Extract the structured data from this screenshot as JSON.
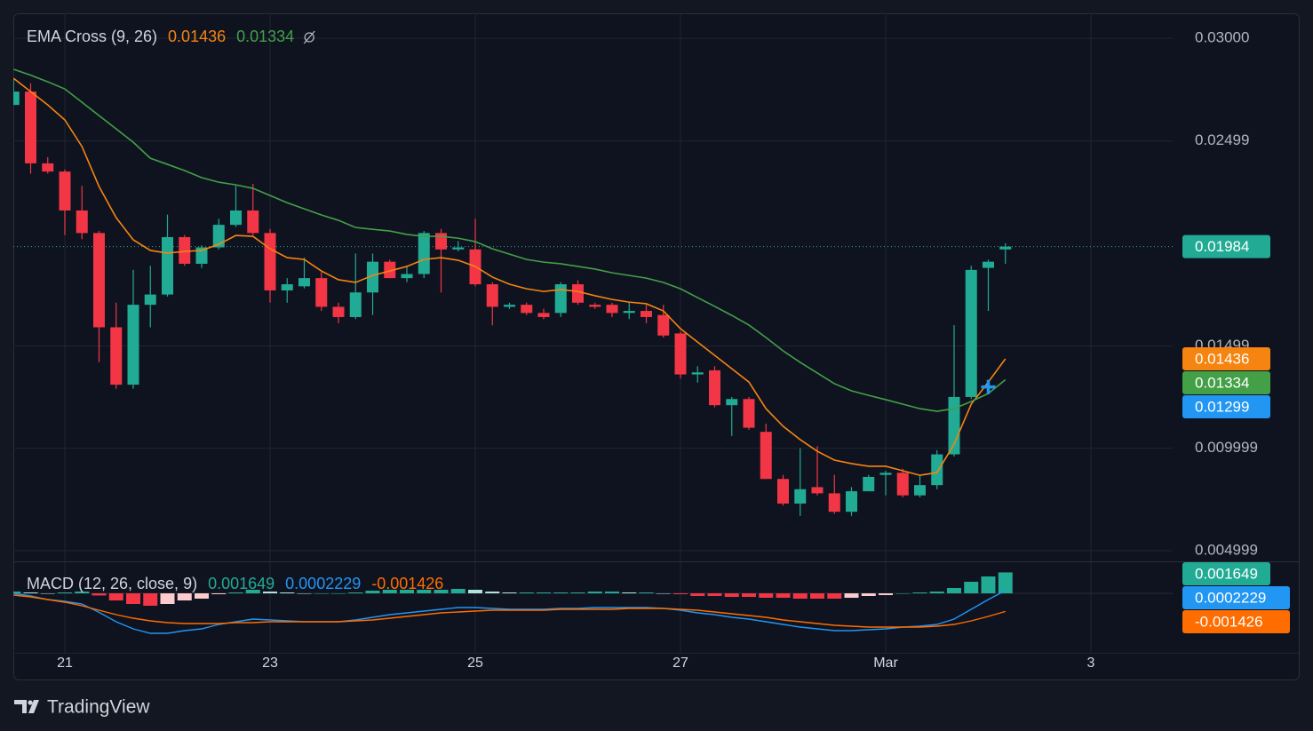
{
  "chart_data": [
    {
      "type": "candlestick",
      "legend_title": "EMA Cross (9, 26)",
      "categories": [
        null,
        null,
        null,
        "21",
        null,
        null,
        null,
        null,
        null,
        null,
        null,
        null,
        null,
        null,
        null,
        "23",
        null,
        null,
        null,
        null,
        null,
        null,
        null,
        null,
        null,
        null,
        null,
        "25",
        null,
        null,
        null,
        null,
        null,
        null,
        null,
        null,
        null,
        null,
        null,
        "27",
        null,
        null,
        null,
        null,
        null,
        null,
        null,
        null,
        null,
        null,
        null,
        "Mar",
        null,
        null,
        null,
        null,
        null,
        null,
        null,
        null,
        null,
        null,
        null,
        "3"
      ],
      "open": [
        0.02675,
        0.0274,
        0.0239,
        0.0235,
        0.0216,
        0.0205,
        0.0159,
        0.0131,
        0.017,
        0.0175,
        0.0203,
        0.019,
        0.0198,
        0.0209,
        0.0216,
        0.0205,
        0.0177,
        0.0179,
        0.0183,
        0.0169,
        0.0164,
        0.0176,
        0.0191,
        0.0183,
        0.0185,
        0.0205,
        0.0197,
        0.0197,
        0.018,
        0.0169,
        0.017,
        0.0166,
        0.0166,
        0.018,
        0.017,
        0.017,
        0.0166,
        0.0167,
        0.0165,
        0.0156,
        0.0136,
        0.0138,
        0.0121,
        0.0124,
        0.0108,
        0.0085,
        0.0073,
        0.0081,
        0.0078,
        0.0069,
        0.0079,
        0.0087,
        0.0088,
        0.0077,
        0.0082,
        0.0097,
        0.0125,
        0.0188,
        0.0197,
        null,
        null,
        null,
        null,
        null
      ],
      "high": [
        0.028,
        0.0278,
        0.0242,
        0.0236,
        0.0228,
        0.0206,
        0.0171,
        0.0187,
        0.0189,
        0.0214,
        0.0204,
        0.0199,
        0.0212,
        0.0228,
        0.0229,
        0.0207,
        0.0183,
        0.0193,
        0.0186,
        0.0171,
        0.0195,
        0.0195,
        0.0192,
        0.0189,
        0.0206,
        0.0207,
        0.0201,
        0.0212,
        0.0181,
        0.0171,
        0.0171,
        0.0168,
        0.0181,
        0.0182,
        0.0171,
        0.0171,
        0.0171,
        0.017,
        0.017,
        0.0157,
        0.014,
        0.014,
        0.0125,
        0.0125,
        0.0112,
        0.0087,
        0.01,
        0.0101,
        0.0087,
        0.0081,
        0.0087,
        0.0089,
        0.009,
        0.0087,
        0.0099,
        0.016,
        0.0189,
        0.0192,
        0.02,
        null,
        null,
        null,
        null,
        null
      ],
      "low": [
        0.02675,
        0.0234,
        0.0234,
        0.0204,
        0.0202,
        0.0142,
        0.0129,
        0.0129,
        0.0159,
        0.0174,
        0.0189,
        0.0188,
        0.0197,
        0.0208,
        0.0204,
        0.0171,
        0.0171,
        0.0178,
        0.0167,
        0.0161,
        0.0163,
        0.0165,
        0.0183,
        0.0181,
        0.0183,
        0.0176,
        0.0196,
        0.0179,
        0.016,
        0.0168,
        0.0165,
        0.0163,
        0.0164,
        0.017,
        0.0168,
        0.0164,
        0.0163,
        0.0161,
        0.0154,
        0.0134,
        0.0132,
        0.012,
        0.0106,
        0.0109,
        0.0085,
        0.0072,
        0.0067,
        0.0077,
        0.0068,
        0.0067,
        0.0079,
        0.0077,
        0.0076,
        0.0076,
        0.008,
        0.0096,
        0.0124,
        0.0167,
        0.019,
        null,
        null,
        null,
        null,
        null
      ],
      "close": [
        0.0274,
        0.0239,
        0.0235,
        0.0216,
        0.0205,
        0.0159,
        0.0131,
        0.017,
        0.0175,
        0.0203,
        0.019,
        0.0198,
        0.0209,
        0.0216,
        0.0205,
        0.0177,
        0.018,
        0.0183,
        0.0169,
        0.0164,
        0.0176,
        0.0191,
        0.0183,
        0.0185,
        0.0205,
        0.0197,
        0.0198,
        0.018,
        0.0169,
        0.017,
        0.0166,
        0.0164,
        0.018,
        0.0171,
        0.0169,
        0.0166,
        0.0167,
        0.0164,
        0.0155,
        0.0136,
        0.0137,
        0.0121,
        0.0124,
        0.011,
        0.0085,
        0.0073,
        0.008,
        0.0078,
        0.0069,
        0.0079,
        0.0086,
        0.0088,
        0.0077,
        0.0082,
        0.0097,
        0.0125,
        0.0187,
        0.0191,
        0.01984,
        null,
        null,
        null,
        null,
        null
      ],
      "up_color": "#22ab94",
      "down_color": "#f23645",
      "series": [
        {
          "color": "#f68410",
          "values": [
            0.02805,
            0.0274,
            0.02675,
            0.02602,
            0.02472,
            0.02277,
            0.02125,
            0.02017,
            0.01965,
            0.01952,
            0.0196,
            0.01965,
            0.01995,
            0.02038,
            0.02034,
            0.01973,
            0.0193,
            0.01921,
            0.01865,
            0.01822,
            0.01809,
            0.01843,
            0.01865,
            0.01887,
            0.01921,
            0.0193,
            0.01917,
            0.01887,
            0.01835,
            0.018,
            0.01778,
            0.01765,
            0.01774,
            0.01765,
            0.01744,
            0.01726,
            0.01713,
            0.01705,
            0.0167,
            0.01583,
            0.01518,
            0.01453,
            0.01388,
            0.01323,
            0.01193,
            0.01107,
            0.01042,
            0.00985,
            0.00942,
            0.00925,
            0.00912,
            0.00912,
            0.0089,
            0.00868,
            0.00881,
            0.0102,
            0.01215,
            0.01323,
            0.01436,
            null,
            null,
            null,
            null,
            null
          ]
        },
        {
          "color": "#43a047",
          "values": [
            0.02849,
            0.0282,
            0.02788,
            0.02753,
            0.02688,
            0.02623,
            0.02558,
            0.02493,
            0.02415,
            0.02385,
            0.02355,
            0.0232,
            0.02298,
            0.02285,
            0.02268,
            0.02233,
            0.02198,
            0.02168,
            0.02138,
            0.02112,
            0.02077,
            0.02068,
            0.0206,
            0.02043,
            0.02034,
            0.02034,
            0.02025,
            0.02008,
            0.01973,
            0.01947,
            0.01921,
            0.01908,
            0.019,
            0.01887,
            0.01874,
            0.01856,
            0.01843,
            0.0183,
            0.01809,
            0.01778,
            0.01735,
            0.01692,
            0.01648,
            0.01601,
            0.0154,
            0.01475,
            0.01419,
            0.01367,
            0.01315,
            0.0128,
            0.01258,
            0.01237,
            0.01215,
            0.01193,
            0.0118,
            0.01193,
            0.01228,
            0.01267,
            0.01334,
            null,
            null,
            null,
            null,
            null
          ]
        }
      ],
      "ylim": [
        0.00448,
        0.03122
      ],
      "yticks": [
        {
          "value": 0.03,
          "label": "0.03000"
        },
        0.02499,
        0.01499,
        0.009999,
        0.004999
      ],
      "grid": true,
      "last_price": 0.01984,
      "marker_price": 0.01299,
      "marker_color": "#2196f3"
    },
    {
      "type": "macd",
      "title": "MACD (12, 26, close, 9)",
      "ylim": [
        -0.00469,
        0.00252
      ],
      "histogram": [
        0.00014,
        7e-05,
        0,
        7e-05,
        0.00014,
        -0.00017,
        -0.00056,
        -0.00084,
        -0.00098,
        -0.00084,
        -0.00056,
        -0.00042,
        -7e-05,
        7e-05,
        0.00028,
        0.00014,
        7e-05,
        0,
        0,
        0,
        7e-05,
        0.00021,
        0.00028,
        0.00028,
        0.00028,
        0.00028,
        0.00035,
        0.00028,
        0.00014,
        7e-05,
        7e-05,
        7e-05,
        7e-05,
        7e-05,
        0.00014,
        0.00014,
        7e-05,
        7e-05,
        0,
        -7e-05,
        -0.00021,
        -0.00021,
        -0.00028,
        -0.00028,
        -0.00035,
        -0.00035,
        -0.00042,
        -0.00042,
        -0.00042,
        -0.00035,
        -0.00021,
        -0.00014,
        0,
        7e-05,
        0.00014,
        0.00042,
        0.00091,
        0.00133,
        0.001649,
        null,
        null,
        null,
        null,
        null
      ],
      "histogram_colors": {
        "up": "#22ab94",
        "up_fading": "#ace5dc",
        "down": "#f23645",
        "down_fading": "#fccbcd"
      },
      "macd": {
        "color": "#2196f3",
        "values": [
          0,
          -0.00021,
          -0.00049,
          -0.00063,
          -0.00084,
          -0.0015,
          -0.00224,
          -0.0028,
          -0.00315,
          -0.00315,
          -0.00294,
          -0.0028,
          -0.00245,
          -0.00224,
          -0.00203,
          -0.0021,
          -0.00217,
          -0.00224,
          -0.00224,
          -0.00224,
          -0.0021,
          -0.00189,
          -0.00168,
          -0.00154,
          -0.0014,
          -0.00126,
          -0.00112,
          -0.00112,
          -0.00119,
          -0.00126,
          -0.00126,
          -0.00126,
          -0.00119,
          -0.00119,
          -0.00112,
          -0.00112,
          -0.00112,
          -0.00112,
          -0.00119,
          -0.00133,
          -0.00154,
          -0.00168,
          -0.00189,
          -0.00203,
          -0.00224,
          -0.00245,
          -0.00266,
          -0.0028,
          -0.00294,
          -0.00294,
          -0.00287,
          -0.0028,
          -0.00266,
          -0.00259,
          -0.00245,
          -0.00203,
          -0.00126,
          -0.00049,
          0.0002229,
          null,
          null,
          null,
          null,
          null
        ]
      },
      "signal": {
        "color": "#ff6d00",
        "values": [
          -0.00014,
          -0.00028,
          -0.00049,
          -0.0007,
          -0.00098,
          -0.00133,
          -0.00168,
          -0.00196,
          -0.00217,
          -0.00231,
          -0.00238,
          -0.00238,
          -0.00238,
          -0.00231,
          -0.00231,
          -0.00224,
          -0.00224,
          -0.00224,
          -0.00224,
          -0.00224,
          -0.00217,
          -0.0021,
          -0.00196,
          -0.00182,
          -0.00168,
          -0.00154,
          -0.00147,
          -0.0014,
          -0.00133,
          -0.00133,
          -0.00133,
          -0.00133,
          -0.00126,
          -0.00126,
          -0.00126,
          -0.00126,
          -0.00119,
          -0.00119,
          -0.00119,
          -0.00126,
          -0.00133,
          -0.00147,
          -0.00161,
          -0.00175,
          -0.00189,
          -0.0021,
          -0.00224,
          -0.00238,
          -0.00252,
          -0.00259,
          -0.00266,
          -0.00266,
          -0.00266,
          -0.00266,
          -0.00259,
          -0.00245,
          -0.00217,
          -0.00182,
          -0.001426,
          null,
          null,
          null,
          null,
          null
        ]
      }
    }
  ],
  "brand": "TradingView"
}
